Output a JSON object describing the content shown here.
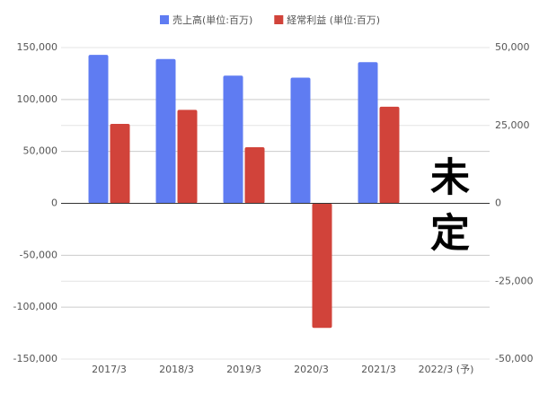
{
  "chart_data": {
    "type": "bar",
    "categories": [
      "2017/3",
      "2018/3",
      "2019/3",
      "2020/3",
      "2021/3",
      "2022/3 (予)"
    ],
    "series": [
      {
        "name": "売上高(単位:百万)",
        "color": "#5f7cf2",
        "values": [
          143000,
          139000,
          123000,
          121000,
          136000,
          null
        ]
      },
      {
        "name": "経常利益 (単位:百万)",
        "color": "#d1433a",
        "axis": "y2",
        "values": [
          25500,
          30000,
          18000,
          -40000,
          31000,
          null
        ]
      }
    ],
    "ylim": [
      -150000,
      150000
    ],
    "yticks": [
      {
        "value": -150000,
        "label": "-150,000"
      },
      {
        "value": -100000,
        "label": "-100,000"
      },
      {
        "value": -50000,
        "label": "-50,000"
      },
      0,
      {
        "value": 50000,
        "label": "50,000"
      },
      {
        "value": 100000,
        "label": "100,000"
      },
      {
        "value": 150000,
        "label": "150,000"
      }
    ],
    "y2lim": [
      -50000,
      50000
    ],
    "y2ticks": [
      {
        "value": -50000,
        "label": "-50,000"
      },
      {
        "value": -25000,
        "label": "-25,000"
      },
      0,
      {
        "value": 25000,
        "label": "25,000"
      },
      {
        "value": 50000,
        "label": "50,000"
      }
    ],
    "annotation": "未定",
    "grid": true,
    "legend": "top"
  }
}
